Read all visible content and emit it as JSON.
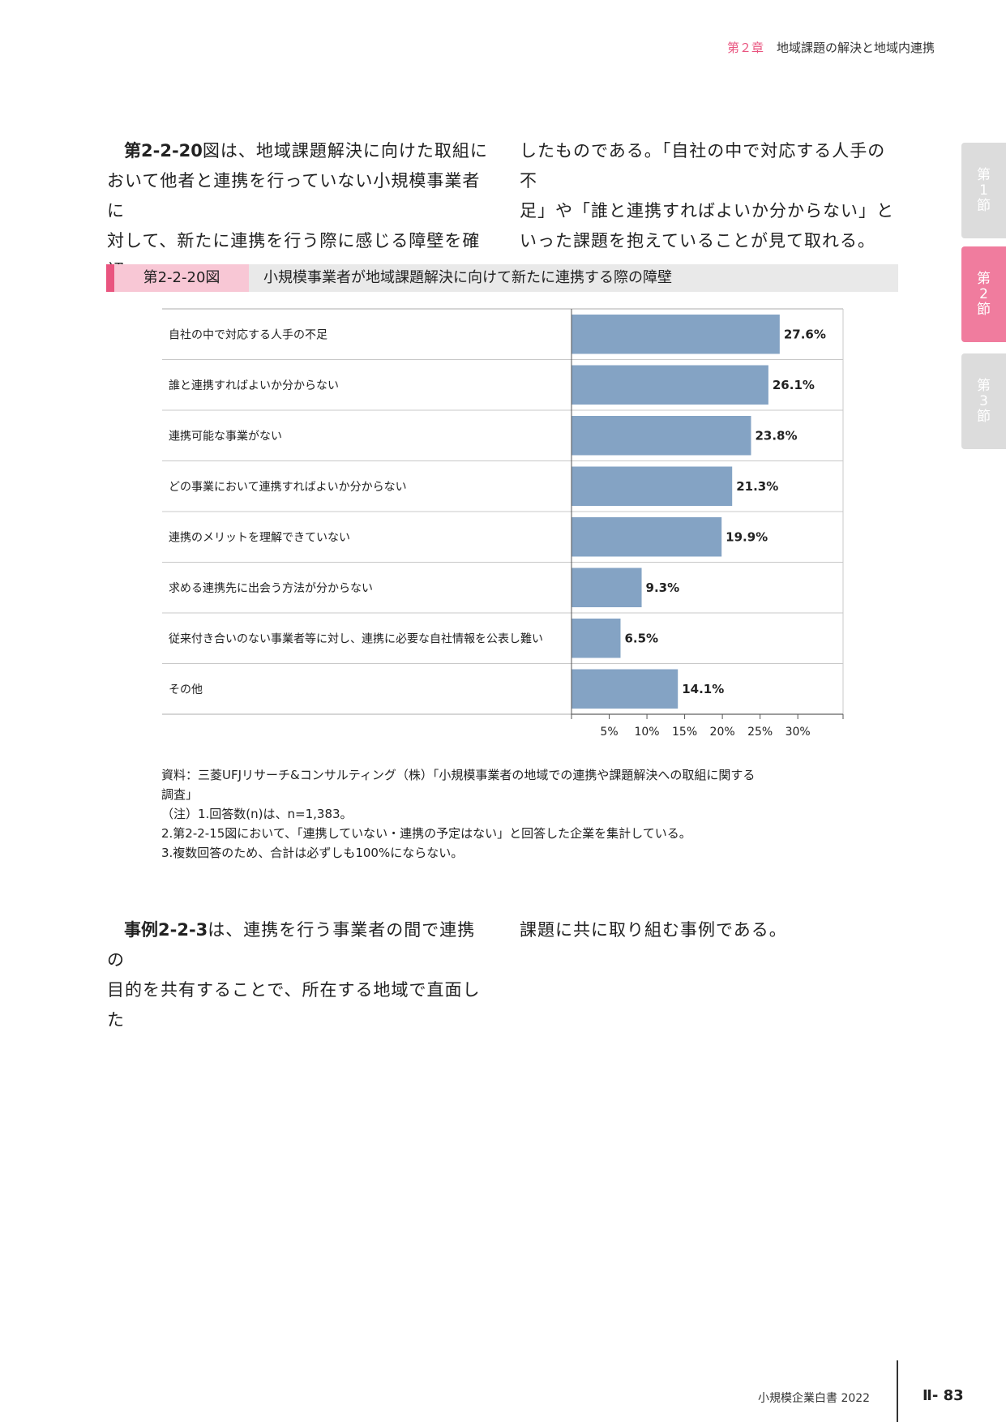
{
  "header": {
    "chapter": "第２章",
    "title": "地域課題の解決と地域内連携"
  },
  "side_tabs": [
    {
      "line1": "第",
      "line2": "1",
      "line3": "節",
      "active": false
    },
    {
      "line1": "第",
      "line2": "2",
      "line3": "節",
      "active": true
    },
    {
      "line1": "第",
      "line2": "3",
      "line3": "節",
      "active": false
    }
  ],
  "intro": {
    "col1": {
      "ref": "第2-2-20",
      "lines": [
        "図は、地域課題解決に向けた取組に",
        "おいて他者と連携を行っていない小規模事業者に",
        "対して、新たに連携を行う際に感じる障壁を確認"
      ]
    },
    "col2": {
      "lines": [
        "したものである。「自社の中で対応する人手の不",
        "足」や「誰と連携すればよいか分からない」と",
        "いった課題を抱えていることが見て取れる。"
      ]
    }
  },
  "figure": {
    "number": "第2-2-20図",
    "title": "小規模事業者が地域課題解決に向けて新たに連携する際の障壁"
  },
  "chart_data": {
    "type": "bar",
    "orientation": "horizontal",
    "categories": [
      "自社の中で対応する人手の不足",
      "誰と連携すればよいか分からない",
      "連携可能な事業がない",
      "どの事業において連携すればよいか分からない",
      "連携のメリットを理解できていない",
      "求める連携先に出会う方法が分からない",
      "従来付き合いのない事業者等に対し、連携に必要な自社情報を公表し難い",
      "その他"
    ],
    "values": [
      27.6,
      26.1,
      23.8,
      21.3,
      19.9,
      9.3,
      6.5,
      14.1
    ],
    "value_labels": [
      "27.6%",
      "26.1%",
      "23.8%",
      "21.3%",
      "19.9%",
      "9.3%",
      "6.5%",
      "14.1%"
    ],
    "xticks": [
      "5%",
      "10%",
      "15%",
      "20%",
      "25%",
      "30%"
    ],
    "xtick_values": [
      5,
      10,
      15,
      20,
      25,
      30
    ],
    "xlim": [
      0,
      36
    ],
    "bar_color": "#84a3c4",
    "grid": false
  },
  "notes": {
    "source": [
      "資料：三菱UFJリサーチ&コンサルティング（株）「小規模事業者の地域での連携や課題解決への取組に関する",
      "調査」"
    ],
    "items": [
      "（注）1.回答数(n)は、n=1,383。",
      "2.第2-2-15図において、「連携していない・連携の予定はない」と回答した企業を集計している。",
      "3.複数回答のため、合計は必ずしも100%にならない。"
    ]
  },
  "outro": {
    "col1": {
      "ref": "事例2-2-3",
      "lines": [
        "は、連携を行う事業者の間で連携の",
        "目的を共有することで、所在する地域で直面した"
      ]
    },
    "col2": {
      "lines": [
        "課題に共に取り組む事例である。"
      ]
    }
  },
  "footer": {
    "book": "小規模企業白書 2022",
    "page": "Ⅱ- 83"
  }
}
